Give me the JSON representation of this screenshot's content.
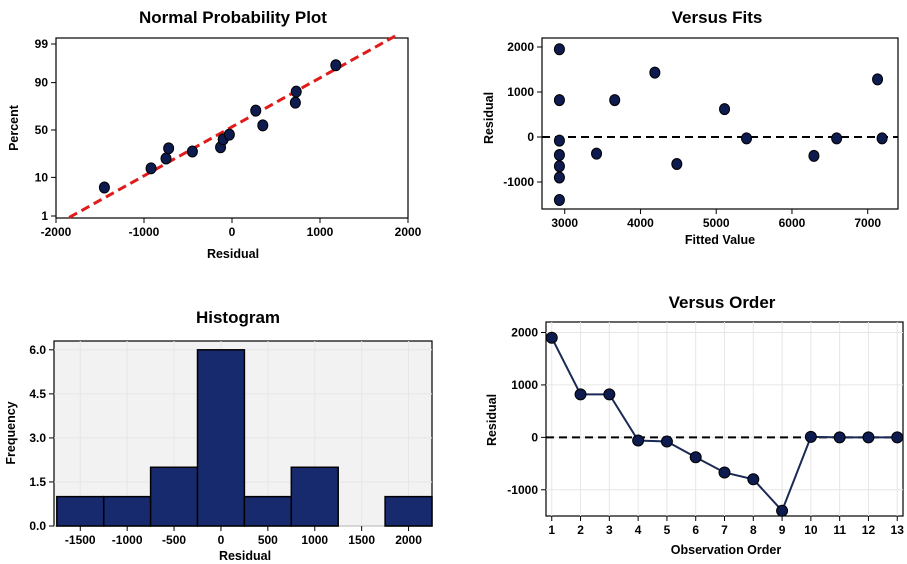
{
  "colors": {
    "point": "#0d1b4f",
    "bar": "#182a6e",
    "bar_edge": "#000000",
    "fit_line": "#e01b1b",
    "line": "#1a2a55",
    "grid": "#e6e6e6",
    "frame_fill_hist": "#f2f2f2"
  },
  "chart_data": [
    {
      "id": "normal-probability",
      "type": "scatter",
      "title": "Normal Probability Plot",
      "xlabel": "Residual",
      "ylabel": "Percent",
      "xlim": [
        -2000,
        2000
      ],
      "x_ticks": [
        "-2000",
        "-1000",
        "0",
        "1000",
        "2000"
      ],
      "y_ticks": [
        "1",
        "10",
        "50",
        "90",
        "99"
      ],
      "y_scale": "normal-probability",
      "grid": false,
      "fit_line": {
        "from": [
          -1850,
          0.9
        ],
        "to": [
          1880,
          99.5
        ],
        "style": "dashed"
      },
      "points": [
        {
          "x": -1450,
          "y": 6
        },
        {
          "x": -920,
          "y": 15
        },
        {
          "x": -750,
          "y": 22
        },
        {
          "x": -720,
          "y": 31
        },
        {
          "x": -450,
          "y": 28
        },
        {
          "x": -130,
          "y": 32
        },
        {
          "x": -100,
          "y": 40
        },
        {
          "x": -30,
          "y": 45
        },
        {
          "x": 270,
          "y": 70
        },
        {
          "x": 350,
          "y": 55
        },
        {
          "x": 720,
          "y": 77
        },
        {
          "x": 730,
          "y": 85
        },
        {
          "x": 1180,
          "y": 96
        }
      ]
    },
    {
      "id": "versus-fits",
      "type": "scatter",
      "title": "Versus Fits",
      "xlabel": "Fitted Value",
      "ylabel": "Residual",
      "xlim": [
        2700,
        7400
      ],
      "ylim": [
        -1600,
        2200
      ],
      "x_ticks": [
        "3000",
        "4000",
        "5000",
        "6000",
        "7000"
      ],
      "y_ticks": [
        "-1000",
        "0",
        "1000",
        "2000"
      ],
      "grid": false,
      "reference_line": 0,
      "points": [
        {
          "x": 2930,
          "y": 1950
        },
        {
          "x": 2930,
          "y": 820
        },
        {
          "x": 2930,
          "y": -80
        },
        {
          "x": 2930,
          "y": -400
        },
        {
          "x": 2930,
          "y": -650
        },
        {
          "x": 2930,
          "y": -900
        },
        {
          "x": 2930,
          "y": -1400
        },
        {
          "x": 3420,
          "y": -370
        },
        {
          "x": 3660,
          "y": 820
        },
        {
          "x": 4190,
          "y": 1430
        },
        {
          "x": 4480,
          "y": -600
        },
        {
          "x": 5110,
          "y": 620
        },
        {
          "x": 5400,
          "y": -30
        },
        {
          "x": 6290,
          "y": -420
        },
        {
          "x": 6590,
          "y": -30
        },
        {
          "x": 7130,
          "y": 1280
        },
        {
          "x": 7190,
          "y": -30
        }
      ]
    },
    {
      "id": "histogram",
      "type": "bar",
      "title": "Histogram",
      "xlabel": "Residual",
      "ylabel": "Frequency",
      "xlim": [
        -1780,
        2250
      ],
      "ylim": [
        0,
        6.3
      ],
      "x_ticks": [
        "-1500",
        "-1000",
        "-500",
        "0",
        "500",
        "1000",
        "1500",
        "2000"
      ],
      "y_ticks": [
        "0.0",
        "1.5",
        "3.0",
        "4.5",
        "6.0"
      ],
      "grid": true,
      "bin_width": 500,
      "bins": [
        {
          "center": -1500,
          "value": 1
        },
        {
          "center": -1000,
          "value": 1
        },
        {
          "center": -500,
          "value": 2
        },
        {
          "center": 0,
          "value": 6
        },
        {
          "center": 500,
          "value": 1
        },
        {
          "center": 1000,
          "value": 2
        },
        {
          "center": 1500,
          "value": 0
        },
        {
          "center": 2000,
          "value": 1
        }
      ]
    },
    {
      "id": "versus-order",
      "type": "line",
      "title": "Versus Order",
      "xlabel": "Observation Order",
      "ylabel": "Residual",
      "xlim": [
        0.8,
        13.2
      ],
      "ylim": [
        -1500,
        2200
      ],
      "x_ticks": [
        "1",
        "2",
        "3",
        "4",
        "5",
        "6",
        "7",
        "8",
        "9",
        "10",
        "11",
        "12",
        "13"
      ],
      "y_ticks": [
        "-1000",
        "0",
        "1000",
        "2000"
      ],
      "grid": true,
      "reference_line": 0,
      "x": [
        1,
        2,
        3,
        4,
        5,
        6,
        7,
        8,
        9,
        10,
        11,
        12,
        13
      ],
      "values": [
        1900,
        820,
        820,
        -60,
        -80,
        -380,
        -670,
        -800,
        -1400,
        10,
        0,
        0,
        0
      ]
    }
  ]
}
